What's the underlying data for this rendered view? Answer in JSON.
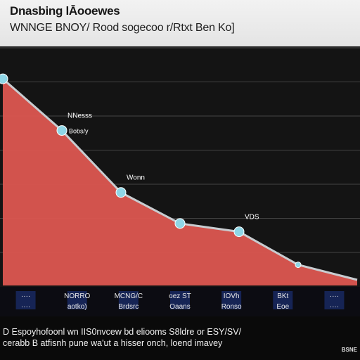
{
  "header": {
    "title": "Dnasbing lĀooewes",
    "subtitle": "WNNGE BNOY/ Rood sogecoo r/Rtxt Ben Ko]"
  },
  "chart_data": {
    "type": "area",
    "title": "Dnasbing lĀooewes",
    "subtitle": "WNNGE BNOY/ Rood sogecoo r/Rtxt Ben Ko]",
    "x": [
      0,
      1,
      2,
      3,
      4,
      5
    ],
    "series": [
      {
        "values": [
          100,
          75,
          45,
          30,
          26,
          10
        ]
      }
    ],
    "ylim": [
      0,
      115
    ],
    "grid": true,
    "fill_color": "#dc5650",
    "line_color": "#c8ccd0",
    "marker_color": "#8fd6e6",
    "annotations": [
      {
        "x": 1,
        "text": "NNesss",
        "subtext": "Bobs/y"
      },
      {
        "x": 2,
        "text": "Wonn"
      },
      {
        "x": 4,
        "text": "VDS"
      }
    ],
    "tick_labels": [
      {
        "top": "····",
        "bottom": "····"
      },
      {
        "top": "NORRO",
        "bottom": "aotko)"
      },
      {
        "top": "MCNG/C",
        "bottom": "Brdsrc"
      },
      {
        "top": "oez ST",
        "bottom": "Oaans"
      },
      {
        "top": "IOVh",
        "bottom": "Ronso"
      },
      {
        "top": "BKt",
        "bottom": "Eoe"
      },
      {
        "top": "····",
        "bottom": "····"
      }
    ]
  },
  "footer": {
    "line1": "D Espoyhofoonl wn IIS0nvcew bd eliooms S8ldre or ESY/SV/",
    "line2": "cerabb B atfisnh pune wa'ut a hisser onch, loend imavey",
    "brand": "BSNE"
  }
}
